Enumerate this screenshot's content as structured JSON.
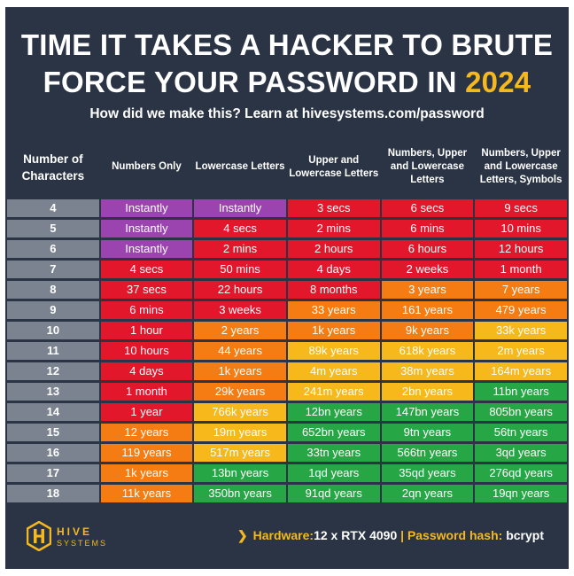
{
  "title": {
    "line1": "TIME IT TAKES A HACKER TO BRUTE",
    "line2_prefix": "FORCE YOUR PASSWORD IN ",
    "year": "2024"
  },
  "subtitle": "How did we make this? Learn at hivesystems.com/password",
  "colors": {
    "purple": "#9b44b0",
    "red": "#e3172b",
    "orange": "#f47c12",
    "yellow": "#f6b81a",
    "green": "#27a645",
    "accent": "#f5b91f",
    "background": "#2a3444"
  },
  "chart_data": {
    "type": "table",
    "columns": [
      "Number of Characters",
      "Numbers Only",
      "Lowercase Letters",
      "Upper and Lowercase Letters",
      "Numbers, Upper and Lowercase Letters",
      "Numbers, Upper and Lowercase Letters, Symbols"
    ],
    "rows": [
      {
        "chars": "4",
        "cells": [
          [
            "Instantly",
            "p"
          ],
          [
            "Instantly",
            "p"
          ],
          [
            "3 secs",
            "r"
          ],
          [
            "6 secs",
            "r"
          ],
          [
            "9 secs",
            "r"
          ]
        ]
      },
      {
        "chars": "5",
        "cells": [
          [
            "Instantly",
            "p"
          ],
          [
            "4 secs",
            "r"
          ],
          [
            "2 mins",
            "r"
          ],
          [
            "6 mins",
            "r"
          ],
          [
            "10 mins",
            "r"
          ]
        ]
      },
      {
        "chars": "6",
        "cells": [
          [
            "Instantly",
            "p"
          ],
          [
            "2 mins",
            "r"
          ],
          [
            "2 hours",
            "r"
          ],
          [
            "6 hours",
            "r"
          ],
          [
            "12 hours",
            "r"
          ]
        ]
      },
      {
        "chars": "7",
        "cells": [
          [
            "4 secs",
            "r"
          ],
          [
            "50 mins",
            "r"
          ],
          [
            "4 days",
            "r"
          ],
          [
            "2 weeks",
            "r"
          ],
          [
            "1 month",
            "r"
          ]
        ]
      },
      {
        "chars": "8",
        "cells": [
          [
            "37 secs",
            "r"
          ],
          [
            "22 hours",
            "r"
          ],
          [
            "8 months",
            "r"
          ],
          [
            "3 years",
            "o"
          ],
          [
            "7 years",
            "o"
          ]
        ]
      },
      {
        "chars": "9",
        "cells": [
          [
            "6 mins",
            "r"
          ],
          [
            "3 weeks",
            "r"
          ],
          [
            "33 years",
            "o"
          ],
          [
            "161 years",
            "o"
          ],
          [
            "479 years",
            "o"
          ]
        ]
      },
      {
        "chars": "10",
        "cells": [
          [
            "1 hour",
            "r"
          ],
          [
            "2 years",
            "o"
          ],
          [
            "1k years",
            "o"
          ],
          [
            "9k years",
            "o"
          ],
          [
            "33k years",
            "y"
          ]
        ]
      },
      {
        "chars": "11",
        "cells": [
          [
            "10 hours",
            "r"
          ],
          [
            "44 years",
            "o"
          ],
          [
            "89k years",
            "y"
          ],
          [
            "618k years",
            "y"
          ],
          [
            "2m years",
            "y"
          ]
        ]
      },
      {
        "chars": "12",
        "cells": [
          [
            "4 days",
            "r"
          ],
          [
            "1k years",
            "o"
          ],
          [
            "4m years",
            "y"
          ],
          [
            "38m years",
            "y"
          ],
          [
            "164m years",
            "y"
          ]
        ]
      },
      {
        "chars": "13",
        "cells": [
          [
            "1 month",
            "r"
          ],
          [
            "29k years",
            "o"
          ],
          [
            "241m years",
            "y"
          ],
          [
            "2bn years",
            "y"
          ],
          [
            "11bn years",
            "g"
          ]
        ]
      },
      {
        "chars": "14",
        "cells": [
          [
            "1 year",
            "r"
          ],
          [
            "766k years",
            "y"
          ],
          [
            "12bn years",
            "g"
          ],
          [
            "147bn years",
            "g"
          ],
          [
            "805bn years",
            "g"
          ]
        ]
      },
      {
        "chars": "15",
        "cells": [
          [
            "12 years",
            "o"
          ],
          [
            "19m years",
            "y"
          ],
          [
            "652bn years",
            "g"
          ],
          [
            "9tn years",
            "g"
          ],
          [
            "56tn years",
            "g"
          ]
        ]
      },
      {
        "chars": "16",
        "cells": [
          [
            "119 years",
            "o"
          ],
          [
            "517m years",
            "y"
          ],
          [
            "33tn years",
            "g"
          ],
          [
            "566tn years",
            "g"
          ],
          [
            "3qd years",
            "g"
          ]
        ]
      },
      {
        "chars": "17",
        "cells": [
          [
            "1k years",
            "o"
          ],
          [
            "13bn years",
            "g"
          ],
          [
            "1qd years",
            "g"
          ],
          [
            "35qd years",
            "g"
          ],
          [
            "276qd years",
            "g"
          ]
        ]
      },
      {
        "chars": "18",
        "cells": [
          [
            "11k years",
            "o"
          ],
          [
            "350bn years",
            "g"
          ],
          [
            "91qd years",
            "g"
          ],
          [
            "2qn years",
            "g"
          ],
          [
            "19qn years",
            "g"
          ]
        ]
      }
    ]
  },
  "logo": {
    "name": "HIVE",
    "tagline": "SYSTEMS",
    "icon": "hive-hexagon-logo-icon"
  },
  "footer": {
    "arrow": "❯",
    "hardware_label": "Hardware:",
    "hardware_value": "12 x RTX 4090",
    "separator": " | ",
    "hash_label": "Password hash: ",
    "hash_value": "bcrypt"
  }
}
